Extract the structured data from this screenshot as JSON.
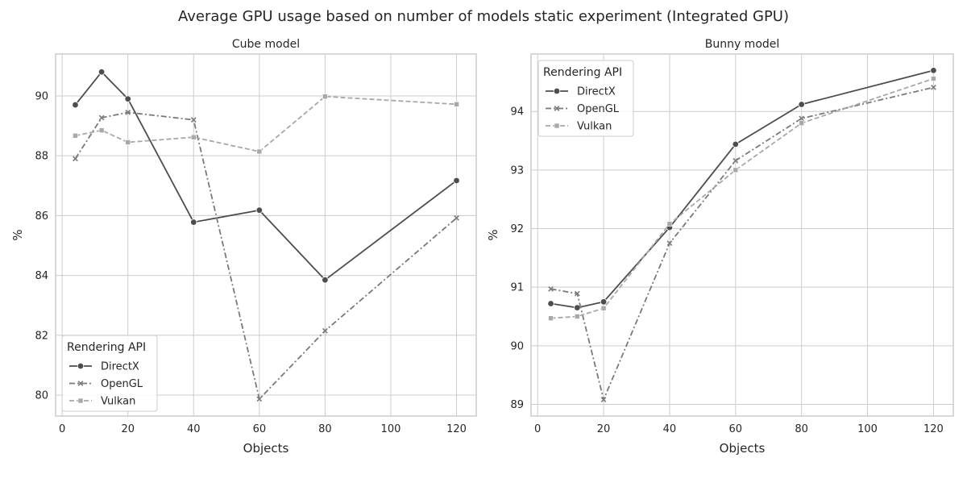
{
  "title": "Average GPU usage based on number of models static experiment (Integrated GPU)",
  "colors": {
    "DirectX": "#4d4d4d",
    "OpenGL": "#7a7a7a",
    "Vulkan": "#a8a8a8",
    "grid": "#cccccc",
    "text": "#262626"
  },
  "chart_data": [
    {
      "type": "line",
      "title": "Cube model",
      "xlabel": "Objects",
      "ylabel": "%",
      "xlim": [
        -2,
        126
      ],
      "ylim": [
        79.3,
        91.4
      ],
      "xticks": [
        0,
        20,
        40,
        60,
        80,
        100,
        120
      ],
      "yticks": [
        80,
        82,
        84,
        86,
        88,
        90
      ],
      "grid": true,
      "legend": {
        "title": "Rendering API",
        "placement": "lower-left"
      },
      "x": [
        4,
        12,
        20,
        40,
        60,
        80,
        120
      ],
      "series": [
        {
          "name": "DirectX",
          "marker": "circle",
          "dash": "solid",
          "values": [
            89.7,
            90.8,
            89.9,
            85.78,
            86.18,
            83.85,
            87.17
          ]
        },
        {
          "name": "OpenGL",
          "marker": "x",
          "dash": "dashdot",
          "values": [
            87.9,
            89.27,
            89.45,
            89.2,
            79.87,
            82.15,
            85.92
          ]
        },
        {
          "name": "Vulkan",
          "marker": "square",
          "dash": "dashed",
          "values": [
            88.67,
            88.85,
            88.45,
            88.62,
            88.14,
            89.98,
            89.72
          ]
        }
      ]
    },
    {
      "type": "line",
      "title": "Bunny model",
      "xlabel": "Objects",
      "ylabel": "%",
      "xlim": [
        -2,
        126
      ],
      "ylim": [
        88.8,
        94.98
      ],
      "xticks": [
        0,
        20,
        40,
        60,
        80,
        100,
        120
      ],
      "yticks": [
        89,
        90,
        91,
        92,
        93,
        94
      ],
      "grid": true,
      "legend": {
        "title": "Rendering API",
        "placement": "upper-left"
      },
      "x": [
        4,
        12,
        20,
        40,
        60,
        80,
        120
      ],
      "series": [
        {
          "name": "DirectX",
          "marker": "circle",
          "dash": "solid",
          "values": [
            90.72,
            90.65,
            90.75,
            92.02,
            93.44,
            94.12,
            94.7
          ]
        },
        {
          "name": "OpenGL",
          "marker": "x",
          "dash": "dashdot",
          "values": [
            90.97,
            90.89,
            89.08,
            91.75,
            93.16,
            93.88,
            94.41
          ]
        },
        {
          "name": "Vulkan",
          "marker": "square",
          "dash": "dashed",
          "values": [
            90.47,
            90.5,
            90.64,
            92.08,
            93.0,
            93.8,
            94.56
          ]
        }
      ]
    }
  ]
}
